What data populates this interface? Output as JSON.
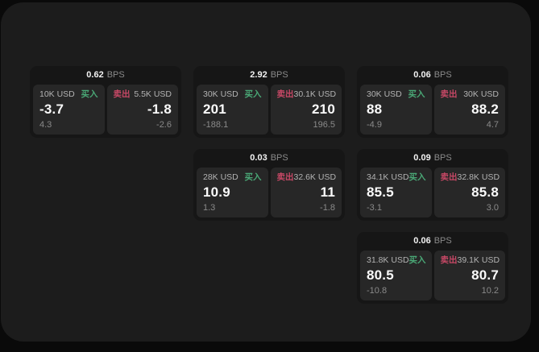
{
  "labels": {
    "buy": "买入",
    "sell": "卖出",
    "bps_unit": "BPS"
  },
  "colors": {
    "page_bg": "#0a0a0a",
    "window_bg": "#1c1c1c",
    "card_bg": "#161616",
    "panel_bg": "#272727",
    "buy_green": "#4aa876",
    "sell_red": "#c74866"
  },
  "cards": [
    {
      "row": 0,
      "col": 0,
      "bps": "0.62",
      "buy": {
        "notional": "10K USD",
        "price": "-3.7",
        "change": "4.3"
      },
      "sell": {
        "notional": "5.5K USD",
        "price": "-1.8",
        "change": "-2.6"
      }
    },
    {
      "row": 0,
      "col": 1,
      "bps": "2.92",
      "buy": {
        "notional": "30K USD",
        "price": "201",
        "change": "-188.1"
      },
      "sell": {
        "notional": "30.1K USD",
        "price": "210",
        "change": "196.5"
      }
    },
    {
      "row": 0,
      "col": 2,
      "bps": "0.06",
      "buy": {
        "notional": "30K USD",
        "price": "88",
        "change": "-4.9"
      },
      "sell": {
        "notional": "30K USD",
        "price": "88.2",
        "change": "4.7"
      }
    },
    {
      "row": 1,
      "col": 1,
      "bps": "0.03",
      "buy": {
        "notional": "28K USD",
        "price": "10.9",
        "change": "1.3"
      },
      "sell": {
        "notional": "32.6K USD",
        "price": "11",
        "change": "-1.8"
      }
    },
    {
      "row": 1,
      "col": 2,
      "bps": "0.09",
      "buy": {
        "notional": "34.1K USD",
        "price": "85.5",
        "change": "-3.1"
      },
      "sell": {
        "notional": "32.8K USD",
        "price": "85.8",
        "change": "3.0"
      }
    },
    {
      "row": 2,
      "col": 2,
      "bps": "0.06",
      "buy": {
        "notional": "31.8K USD",
        "price": "80.5",
        "change": "-10.8"
      },
      "sell": {
        "notional": "39.1K USD",
        "price": "80.7",
        "change": "10.2"
      }
    }
  ]
}
